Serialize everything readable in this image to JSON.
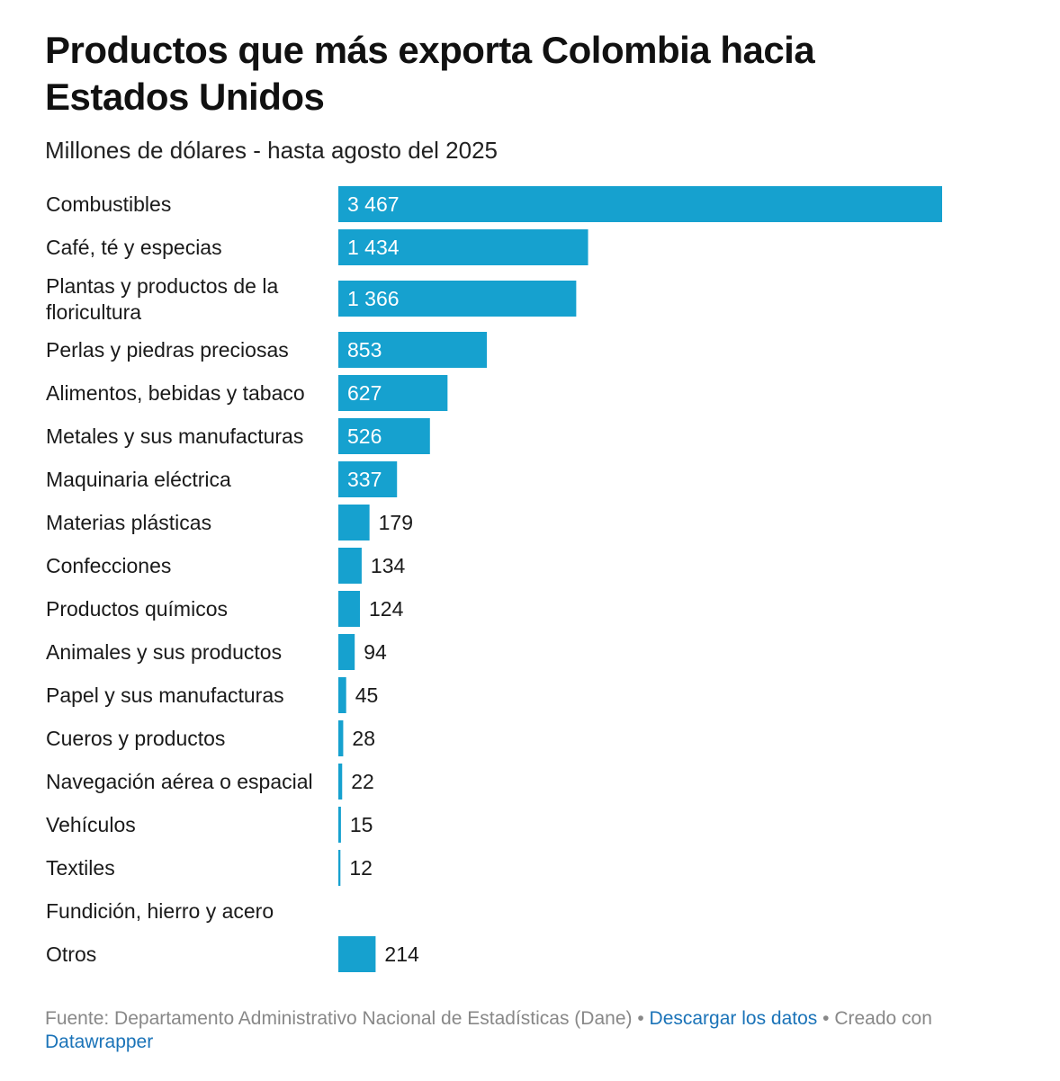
{
  "chart_data": {
    "type": "bar",
    "orientation": "horizontal",
    "title": "Productos que más exporta Colombia hacia Estados Unidos",
    "subtitle": "Millones de dólares - hasta agosto del 2025",
    "categories": [
      "Combustibles",
      "Café, té y especias",
      "Plantas y productos de la floricultura",
      "Perlas y piedras preciosas",
      "Alimentos, bebidas y tabaco",
      "Metales y sus manufacturas",
      "Maquinaria eléctrica",
      "Materias plásticas",
      "Confecciones",
      "Productos químicos",
      "Animales y sus productos",
      "Papel y sus manufacturas",
      "Cueros y productos",
      "Navegación aérea o espacial",
      "Vehículos",
      "Textiles",
      "Fundición, hierro y acero",
      "Otros"
    ],
    "values": [
      3467,
      1434,
      1366,
      853,
      627,
      526,
      337,
      179,
      134,
      124,
      94,
      45,
      28,
      22,
      15,
      12,
      null,
      214
    ],
    "value_labels": [
      "3 467",
      "1 434",
      "1 366",
      "853",
      "627",
      "526",
      "337",
      "179",
      "134",
      "124",
      "94",
      "45",
      "28",
      "22",
      "15",
      "12",
      "",
      "214"
    ],
    "bar_color": "#16a1cf"
  },
  "footer": {
    "source": "Fuente: Departamento Administrativo Nacional de Estadísticas (Dane)",
    "separator": " • ",
    "download_link": "Descargar los datos",
    "created_with": "Creado con",
    "tool_link": "Datawrapper"
  }
}
